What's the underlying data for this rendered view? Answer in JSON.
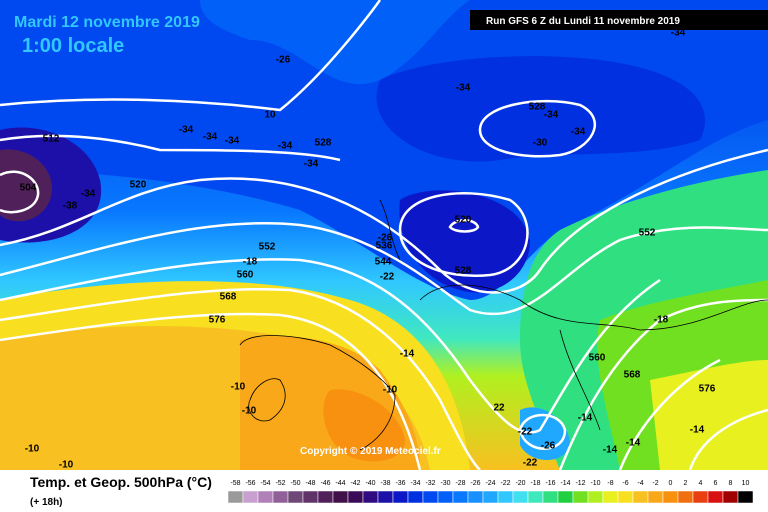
{
  "header": {
    "date": "Mardi 12 novembre 2019",
    "local_time": "1:00 locale",
    "run": "Run GFS 6 Z du Lundi 11 novembre 2019"
  },
  "copyright": "Copyright © 2019 Meteociel.fr",
  "footer": {
    "title": "Temp. et Geop. 500hPa (°C)",
    "lead": "(+ 18h)"
  },
  "scale": {
    "labels": [
      "-58",
      "-56",
      "-54",
      "-52",
      "-50",
      "-48",
      "-46",
      "-44",
      "-42",
      "-40",
      "-38",
      "-36",
      "-34",
      "-32",
      "-30",
      "-28",
      "-26",
      "-24",
      "-22",
      "-20",
      "-18",
      "-16",
      "-14",
      "-12",
      "-10",
      "-8",
      "-6",
      "-4",
      "-2",
      "0",
      "2",
      "4",
      "6",
      "8",
      "10"
    ],
    "colors": [
      "#9a9a9a",
      "#c8a0d0",
      "#b080b8",
      "#906098",
      "#704878",
      "#603468",
      "#50205a",
      "#401048",
      "#3a0a58",
      "#300c80",
      "#1c10a8",
      "#0c18c8",
      "#0030e0",
      "#0048f0",
      "#0060f8",
      "#0878ff",
      "#1890ff",
      "#20a8ff",
      "#30c8ff",
      "#40e0f0",
      "#40e8c0",
      "#30e080",
      "#20d040",
      "#70e020",
      "#b0f020",
      "#e8f020",
      "#f8e020",
      "#f8c020",
      "#f8a818",
      "#f89010",
      "#f07010",
      "#e84010",
      "#d81010",
      "#a00000",
      "#000000"
    ]
  },
  "contour_labels": [
    "-34",
    "-26",
    "-34",
    "528",
    "-34",
    "-34",
    "-30",
    "512",
    "-34",
    "-34",
    "-34",
    "-34",
    "528",
    "-34",
    "504",
    "-34",
    "-38",
    "520",
    "520",
    "-26",
    "536",
    "552",
    "-18",
    "544",
    "-22",
    "560",
    "528",
    "568",
    "576",
    "552",
    "-18",
    "560",
    "568",
    "576",
    "-14",
    "-10",
    "-10",
    "-10",
    "-10",
    "-10",
    "22",
    "-22",
    "-26",
    "-14",
    "-14",
    "-14",
    "-14",
    "-22",
    "10"
  ]
}
